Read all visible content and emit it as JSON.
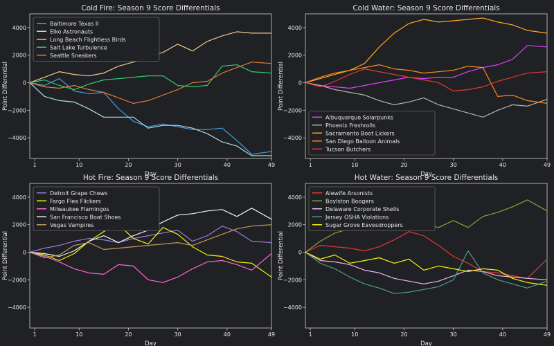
{
  "figure": {
    "background": "#202124",
    "axes_background": "#202124",
    "text_color": "#e6e6e6",
    "spine_color": "#cfcfcf"
  },
  "chart_data": [
    {
      "type": "line",
      "title": "Cold Fire: Season 9 Score Differentials",
      "xlabel": "Day",
      "ylabel": "Point Differential",
      "xlim": [
        0,
        49
      ],
      "ylim": [
        -5500,
        5000
      ],
      "xticks": [
        1,
        10,
        20,
        30,
        40,
        49
      ],
      "yticks": [
        -4000,
        -2000,
        0,
        2000,
        4000
      ],
      "legend": "upper-left",
      "series": [
        {
          "name": "Baltimore Texas II",
          "color": "#4a9fe0",
          "x": [
            0,
            3,
            6,
            9,
            12,
            15,
            18,
            21,
            24,
            27,
            30,
            33,
            36,
            39,
            42,
            45,
            49
          ],
          "y": [
            0,
            -200,
            300,
            -600,
            -800,
            -700,
            -1900,
            -2800,
            -3200,
            -3000,
            -3200,
            -3400,
            -3400,
            -3300,
            -4200,
            -5200,
            -5000
          ]
        },
        {
          "name": "Elko Astronauts",
          "color": "#a8e4e4",
          "x": [
            0,
            3,
            6,
            9,
            12,
            15,
            18,
            21,
            24,
            27,
            30,
            33,
            36,
            39,
            42,
            45,
            49
          ],
          "y": [
            0,
            -1000,
            -1300,
            -1400,
            -1900,
            -2500,
            -2500,
            -2500,
            -3300,
            -3100,
            -3100,
            -3300,
            -3700,
            -4300,
            -4600,
            -5300,
            -5300
          ]
        },
        {
          "name": "Long Beach Flightless Birds",
          "color": "#f3c98b",
          "x": [
            0,
            3,
            6,
            9,
            12,
            15,
            18,
            21,
            24,
            27,
            30,
            33,
            36,
            39,
            42,
            45,
            49
          ],
          "y": [
            0,
            400,
            800,
            600,
            500,
            700,
            1200,
            1500,
            1900,
            2200,
            2800,
            2300,
            3000,
            3400,
            3700,
            3600,
            3600
          ]
        },
        {
          "name": "Salt Lake Turbulence",
          "color": "#2ecc71",
          "x": [
            0,
            3,
            6,
            9,
            12,
            15,
            18,
            21,
            24,
            27,
            30,
            33,
            36,
            39,
            42,
            45,
            49
          ],
          "y": [
            0,
            200,
            -200,
            -500,
            -100,
            200,
            300,
            400,
            500,
            500,
            -200,
            -300,
            -200,
            1200,
            1300,
            800,
            700
          ]
        },
        {
          "name": "Seattle Sneakers",
          "color": "#e07b39",
          "x": [
            0,
            3,
            6,
            9,
            12,
            15,
            18,
            21,
            24,
            27,
            30,
            33,
            36,
            39,
            42,
            45,
            49
          ],
          "y": [
            0,
            -300,
            -400,
            -200,
            -500,
            -700,
            -1100,
            -1500,
            -1300,
            -900,
            -500,
            0,
            100,
            700,
            1100,
            1500,
            1400
          ]
        }
      ]
    },
    {
      "type": "line",
      "title": "Cold Water: Season 9 Score Differentials",
      "xlabel": "Day",
      "ylabel": "Point Differential",
      "xlim": [
        0,
        49
      ],
      "ylim": [
        -5500,
        5000
      ],
      "xticks": [
        1,
        10,
        20,
        30,
        40,
        49
      ],
      "yticks": [
        -4000,
        -2000,
        0,
        2000,
        4000
      ],
      "legend": "lower-left",
      "series": [
        {
          "name": "Albuquerque Solarpunks",
          "color": "#e040fb",
          "x": [
            0,
            3,
            6,
            9,
            12,
            15,
            18,
            21,
            24,
            27,
            30,
            33,
            36,
            39,
            42,
            45,
            49
          ],
          "y": [
            0,
            -200,
            -300,
            -400,
            -200,
            0,
            200,
            400,
            300,
            400,
            400,
            800,
            1100,
            1300,
            1700,
            2700,
            2600
          ]
        },
        {
          "name": "Phoenix Freshrolls",
          "color": "#b4b4b4",
          "x": [
            0,
            3,
            6,
            9,
            12,
            15,
            18,
            21,
            24,
            27,
            30,
            33,
            36,
            39,
            42,
            45,
            49
          ],
          "y": [
            0,
            -200,
            -500,
            -700,
            -900,
            -1300,
            -1600,
            -1400,
            -1100,
            -1600,
            -1900,
            -2200,
            -2500,
            -2000,
            -1600,
            -1700,
            -1200
          ]
        },
        {
          "name": "Sacramento Boot Lickers",
          "color": "#ffa726",
          "x": [
            0,
            3,
            6,
            9,
            12,
            15,
            18,
            21,
            24,
            27,
            30,
            33,
            36,
            39,
            42,
            45,
            49
          ],
          "y": [
            0,
            300,
            600,
            900,
            1400,
            2600,
            3600,
            4300,
            4600,
            4400,
            4500,
            4600,
            4700,
            4400,
            4200,
            3800,
            3600
          ]
        },
        {
          "name": "San Diego Balloon Animals",
          "color": "#ff8c1a",
          "x": [
            0,
            3,
            6,
            9,
            12,
            15,
            18,
            21,
            24,
            27,
            30,
            33,
            36,
            39,
            42,
            45,
            49
          ],
          "y": [
            0,
            400,
            700,
            900,
            1100,
            1300,
            1000,
            900,
            700,
            800,
            900,
            1200,
            1100,
            -1000,
            -900,
            -1300,
            -1500
          ]
        },
        {
          "name": "Tucson Butchers",
          "color": "#e53935",
          "x": [
            0,
            3,
            6,
            9,
            12,
            15,
            18,
            21,
            24,
            27,
            30,
            33,
            36,
            39,
            42,
            45,
            49
          ],
          "y": [
            0,
            -300,
            100,
            600,
            1000,
            800,
            600,
            400,
            200,
            0,
            -600,
            -500,
            -300,
            100,
            400,
            700,
            800
          ]
        }
      ]
    },
    {
      "type": "line",
      "title": "Hot Fire: Season 9 Score Differentials",
      "xlabel": "Day",
      "ylabel": "Point Differential",
      "xlim": [
        0,
        49
      ],
      "ylim": [
        -5500,
        5000
      ],
      "xticks": [
        1,
        10,
        20,
        30,
        40,
        49
      ],
      "yticks": [
        -4000,
        -2000,
        0,
        2000,
        4000
      ],
      "legend": "upper-left",
      "series": [
        {
          "name": "Detroit Grape Chews",
          "color": "#9c7be0",
          "x": [
            0,
            3,
            6,
            9,
            12,
            15,
            18,
            21,
            24,
            27,
            30,
            33,
            36,
            39,
            42,
            45,
            49
          ],
          "y": [
            0,
            300,
            500,
            800,
            1000,
            900,
            700,
            1000,
            1200,
            1400,
            1600,
            800,
            1200,
            1900,
            1500,
            800,
            700
          ]
        },
        {
          "name": "Fargo Flea Flickers",
          "color": "#f4f40a",
          "x": [
            0,
            3,
            6,
            9,
            12,
            15,
            18,
            21,
            24,
            27,
            30,
            33,
            36,
            39,
            42,
            45,
            49
          ],
          "y": [
            0,
            -200,
            -600,
            -100,
            800,
            1500,
            2000,
            1000,
            600,
            1800,
            1300,
            400,
            -200,
            -300,
            -700,
            -800,
            -1800
          ]
        },
        {
          "name": "Milwaukee Flamingos",
          "color": "#ff66d9",
          "x": [
            0,
            3,
            6,
            9,
            12,
            15,
            18,
            21,
            24,
            27,
            30,
            33,
            36,
            39,
            42,
            45,
            49
          ],
          "y": [
            0,
            -300,
            -700,
            -1200,
            -1500,
            -1600,
            -900,
            -1000,
            -2000,
            -2200,
            -1800,
            -1200,
            -700,
            -600,
            -900,
            -1300,
            -100
          ]
        },
        {
          "name": "San Francisco Boat Shoes",
          "color": "#f2f2f2",
          "x": [
            0,
            3,
            6,
            9,
            12,
            15,
            18,
            21,
            24,
            27,
            30,
            33,
            36,
            39,
            42,
            45,
            49
          ],
          "y": [
            0,
            -100,
            -300,
            100,
            800,
            1200,
            700,
            1200,
            1600,
            2200,
            2700,
            2800,
            3000,
            3100,
            2600,
            3200,
            2400
          ]
        },
        {
          "name": "Vegas Vampires",
          "color": "#c49a5a",
          "x": [
            0,
            3,
            6,
            9,
            12,
            15,
            18,
            21,
            24,
            27,
            30,
            33,
            36,
            39,
            42,
            45,
            49
          ],
          "y": [
            0,
            -400,
            -200,
            500,
            700,
            200,
            300,
            400,
            500,
            600,
            700,
            500,
            900,
            1300,
            1700,
            1900,
            2000
          ]
        }
      ]
    },
    {
      "type": "line",
      "title": "Hot Water: Season 9 Score Differentials",
      "xlabel": "Day",
      "ylabel": "Point Differential",
      "xlim": [
        0,
        49
      ],
      "ylim": [
        -5500,
        5000
      ],
      "xticks": [
        1,
        10,
        20,
        30,
        40,
        49
      ],
      "yticks": [
        -4000,
        -2000,
        0,
        2000,
        4000
      ],
      "legend": "upper-left",
      "series": [
        {
          "name": "Alewife Arsonists",
          "color": "#e53935",
          "x": [
            0,
            3,
            6,
            9,
            12,
            15,
            18,
            21,
            24,
            27,
            30,
            33,
            36,
            39,
            42,
            45,
            49
          ],
          "y": [
            0,
            500,
            400,
            300,
            100,
            400,
            900,
            1500,
            1200,
            500,
            -300,
            -800,
            -1400,
            -1500,
            -1700,
            -1900,
            -500
          ]
        },
        {
          "name": "Boylston Boogers",
          "color": "#8aa53a",
          "x": [
            0,
            3,
            6,
            9,
            12,
            15,
            18,
            21,
            24,
            27,
            30,
            33,
            36,
            39,
            42,
            45,
            49
          ],
          "y": [
            0,
            800,
            1400,
            1700,
            1600,
            1900,
            2200,
            1700,
            2000,
            1800,
            2300,
            1800,
            2600,
            2900,
            3300,
            3800,
            3000
          ]
        },
        {
          "name": "Delaware Corporate Shells",
          "color": "#f0b6f0",
          "x": [
            0,
            3,
            6,
            9,
            12,
            15,
            18,
            21,
            24,
            27,
            30,
            33,
            36,
            39,
            42,
            45,
            49
          ],
          "y": [
            0,
            -600,
            -700,
            -900,
            -1300,
            -1500,
            -1900,
            -2100,
            -2300,
            -2100,
            -1700,
            -1300,
            -1400,
            -1700,
            -1800,
            -1900,
            -2000
          ]
        },
        {
          "name": "Jersey OSHA Violations",
          "color": "#4f9e86",
          "x": [
            0,
            3,
            6,
            9,
            12,
            15,
            18,
            21,
            24,
            27,
            30,
            33,
            36,
            39,
            42,
            45,
            49
          ],
          "y": [
            0,
            -800,
            -1200,
            -1800,
            -2300,
            -2600,
            -3000,
            -2900,
            -2700,
            -2500,
            -2000,
            100,
            -1500,
            -2000,
            -2300,
            -2600,
            -2100
          ]
        },
        {
          "name": "Sugar Grove Eavesdroppers",
          "color": "#f4f40a",
          "x": [
            0,
            3,
            6,
            9,
            12,
            15,
            18,
            21,
            24,
            27,
            30,
            33,
            36,
            39,
            42,
            45,
            49
          ],
          "y": [
            0,
            -500,
            -200,
            -800,
            -600,
            -400,
            -800,
            -500,
            -1300,
            -1000,
            -1200,
            -1400,
            -1200,
            -1300,
            -1900,
            -2200,
            -2400
          ]
        }
      ]
    }
  ]
}
